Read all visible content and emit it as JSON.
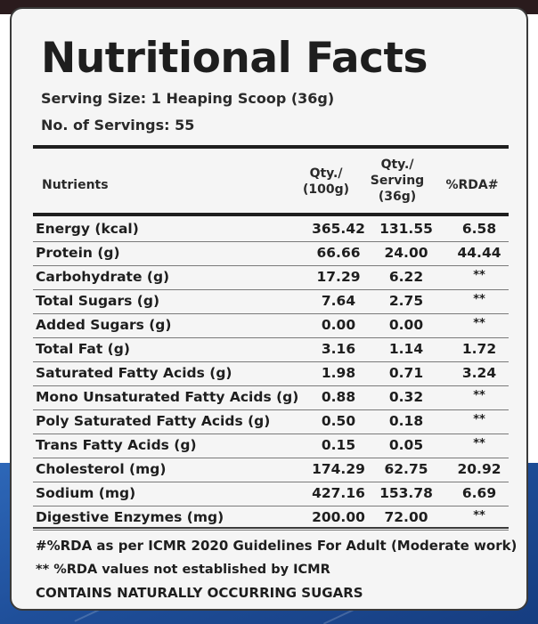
{
  "label": {
    "title": "Nutritional Facts",
    "serving_size": "Serving Size: 1 Heaping Scoop (36g)",
    "servings": "No. of Servings: 55"
  },
  "table": {
    "headers": {
      "nutrients": "Nutrients",
      "qty100_line1": "Qty./",
      "qty100_line2": "(100g)",
      "qtyserv_line1": "Qty./",
      "qtyserv_line2": "Serving",
      "qtyserv_line3": "(36g)",
      "rda": "%RDA#"
    },
    "rows": [
      {
        "name": "Energy (kcal)",
        "per100": "365.42",
        "perServing": "131.55",
        "rda": "6.58"
      },
      {
        "name": "Protein (g)",
        "per100": "66.66",
        "perServing": "24.00",
        "rda": "44.44"
      },
      {
        "name": "Carbohydrate (g)",
        "per100": "17.29",
        "perServing": "6.22",
        "rda": "**"
      },
      {
        "name": "Total Sugars (g)",
        "per100": "7.64",
        "perServing": "2.75",
        "rda": "**"
      },
      {
        "name": "Added Sugars (g)",
        "per100": "0.00",
        "perServing": "0.00",
        "rda": "**"
      },
      {
        "name": "Total Fat (g)",
        "per100": "3.16",
        "perServing": "1.14",
        "rda": "1.72"
      },
      {
        "name": "Saturated Fatty Acids (g)",
        "per100": "1.98",
        "perServing": "0.71",
        "rda": "3.24"
      },
      {
        "name": "Mono Unsaturated Fatty Acids (g)",
        "per100": "0.88",
        "perServing": "0.32",
        "rda": "**"
      },
      {
        "name": "Poly Saturated Fatty Acids (g)",
        "per100": "0.50",
        "perServing": "0.18",
        "rda": "**"
      },
      {
        "name": "Trans Fatty Acids (g)",
        "per100": "0.15",
        "perServing": "0.05",
        "rda": "**"
      },
      {
        "name": "Cholesterol (mg)",
        "per100": "174.29",
        "perServing": "62.75",
        "rda": "20.92"
      },
      {
        "name": "Sodium (mg)",
        "per100": "427.16",
        "perServing": "153.78",
        "rda": "6.69"
      },
      {
        "name": "Digestive Enzymes (mg)",
        "per100": "200.00",
        "perServing": "72.00",
        "rda": "**"
      }
    ]
  },
  "footnotes": {
    "rda_basis": "#%RDA as per ICMR 2020 Guidelines For Adult (Moderate work)",
    "rda_not_established": "** %RDA values not established by ICMR",
    "sugars_note": "CONTAINS NATURALLY OCCURRING SUGARS"
  },
  "colors": {
    "background_blue": "#1f4f9a",
    "card": "#f5f5f5",
    "text": "#1e1e1e"
  }
}
